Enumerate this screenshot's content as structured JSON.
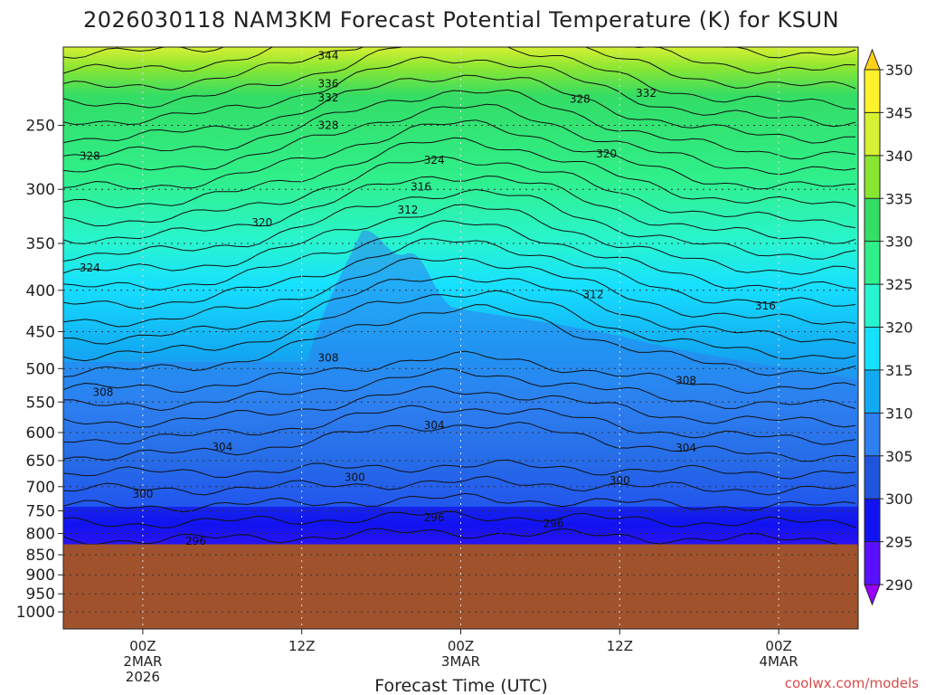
{
  "chart_data": {
    "type": "contour",
    "title": "2026030118 NAM3KM Forecast Potential Temperature (K) for KSUN",
    "xlabel": "Forecast Time (UTC)",
    "ylabel": "",
    "credit": "coolwx.com/models",
    "x_ticks": [
      {
        "hour": 0,
        "lines": [
          "00Z",
          "2MAR",
          "2026"
        ]
      },
      {
        "hour": 12,
        "lines": [
          "12Z"
        ]
      },
      {
        "hour": 24,
        "lines": [
          "00Z",
          "3MAR"
        ]
      },
      {
        "hour": 36,
        "lines": [
          "12Z"
        ]
      },
      {
        "hour": 48,
        "lines": [
          "00Z",
          "4MAR"
        ]
      }
    ],
    "xlim": [
      -6,
      54
    ],
    "y_ticks": [
      250,
      300,
      350,
      400,
      450,
      500,
      550,
      600,
      650,
      700,
      750,
      800,
      850,
      900,
      950,
      1000
    ],
    "ylim": [
      1050,
      200
    ],
    "y_scale": "log",
    "surface_pressure": 825,
    "colorbar": {
      "levels": [
        290,
        295,
        300,
        305,
        310,
        315,
        320,
        325,
        330,
        335,
        340,
        345,
        350
      ],
      "colors": [
        "#9a00ff",
        "#5a10ff",
        "#1212f0",
        "#1e55dd",
        "#2e7ff0",
        "#12aaf2",
        "#16e0ff",
        "#28f5d0",
        "#30f08a",
        "#33dd66",
        "#88e633",
        "#d6f033",
        "#fff22a",
        "#ffd21a"
      ]
    },
    "contour_labels": [
      {
        "value": "344",
        "hour": 14,
        "p": 205
      },
      {
        "value": "336",
        "hour": 14,
        "p": 222
      },
      {
        "value": "332",
        "hour": 14,
        "p": 231
      },
      {
        "value": "328",
        "hour": 14,
        "p": 250
      },
      {
        "value": "328",
        "hour": 33,
        "p": 232
      },
      {
        "value": "332",
        "hour": 38,
        "p": 228
      },
      {
        "value": "328",
        "hour": -4,
        "p": 273
      },
      {
        "value": "324",
        "hour": 22,
        "p": 276
      },
      {
        "value": "320",
        "hour": 35,
        "p": 271
      },
      {
        "value": "316",
        "hour": 21,
        "p": 298
      },
      {
        "value": "312",
        "hour": 20,
        "p": 318
      },
      {
        "value": "320",
        "hour": 9,
        "p": 330
      },
      {
        "value": "324",
        "hour": -4,
        "p": 375
      },
      {
        "value": "312",
        "hour": 34,
        "p": 405
      },
      {
        "value": "316",
        "hour": 47,
        "p": 418
      },
      {
        "value": "308",
        "hour": 14,
        "p": 485
      },
      {
        "value": "308",
        "hour": -3,
        "p": 535
      },
      {
        "value": "308",
        "hour": 41,
        "p": 517
      },
      {
        "value": "304",
        "hour": 22,
        "p": 588
      },
      {
        "value": "304",
        "hour": 6,
        "p": 625
      },
      {
        "value": "304",
        "hour": 41,
        "p": 627
      },
      {
        "value": "300",
        "hour": 16,
        "p": 682
      },
      {
        "value": "300",
        "hour": 0,
        "p": 715
      },
      {
        "value": "300",
        "hour": 36,
        "p": 688
      },
      {
        "value": "296",
        "hour": 22,
        "p": 765
      },
      {
        "value": "296",
        "hour": 31,
        "p": 778
      },
      {
        "value": "296",
        "hour": 4,
        "p": 818
      }
    ],
    "grid": "dotted"
  }
}
